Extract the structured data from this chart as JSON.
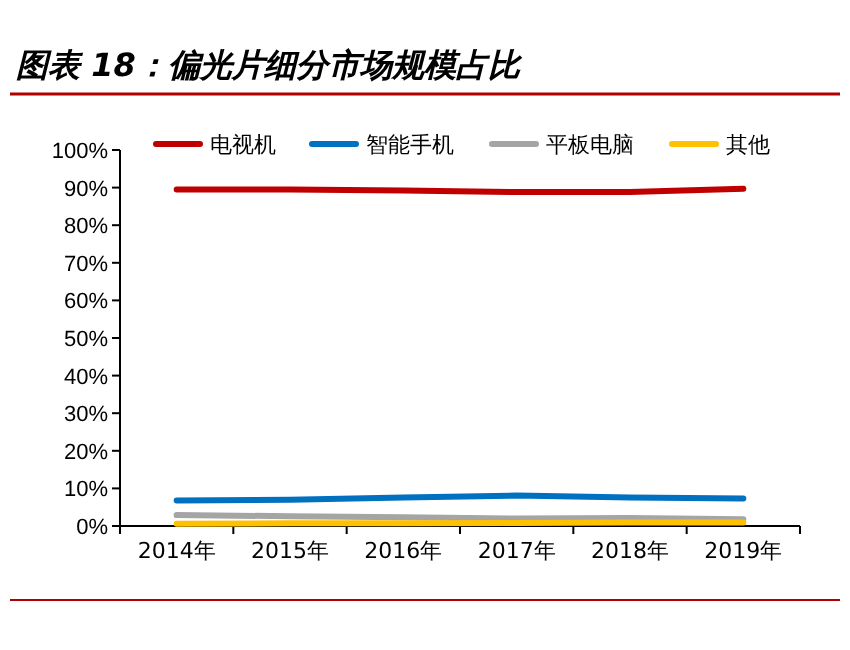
{
  "chart_data": {
    "type": "line",
    "title": "图表 18：偏光片细分市场规模占比",
    "categories": [
      "2014年",
      "2015年",
      "2016年",
      "2017年",
      "2018年",
      "2019年"
    ],
    "ylim": [
      0,
      100
    ],
    "yticks": [
      {
        "value": 0,
        "label": "0%"
      },
      {
        "value": 10,
        "label": "10%"
      },
      {
        "value": 20,
        "label": "20%"
      },
      {
        "value": 30,
        "label": "30%"
      },
      {
        "value": 40,
        "label": "40%"
      },
      {
        "value": 50,
        "label": "50%"
      },
      {
        "value": 60,
        "label": "60%"
      },
      {
        "value": 70,
        "label": "70%"
      },
      {
        "value": 80,
        "label": "80%"
      },
      {
        "value": 90,
        "label": "90%"
      },
      {
        "value": 100,
        "label": "100%"
      }
    ],
    "legend": "top",
    "marker": "none",
    "series": [
      {
        "name": "电视机",
        "color": "#c00000",
        "values": [
          89.5,
          89.5,
          89.2,
          88.8,
          88.8,
          89.7
        ]
      },
      {
        "name": "智能手机",
        "color": "#0070c0",
        "values": [
          6.8,
          7.0,
          7.6,
          8.1,
          7.6,
          7.3
        ]
      },
      {
        "name": "平板电脑",
        "color": "#a5a5a5",
        "values": [
          2.9,
          2.6,
          2.3,
          2.0,
          2.1,
          1.8
        ]
      },
      {
        "name": "其他",
        "color": "#ffc000",
        "values": [
          0.6,
          0.7,
          0.7,
          0.8,
          0.9,
          0.9
        ]
      }
    ]
  }
}
